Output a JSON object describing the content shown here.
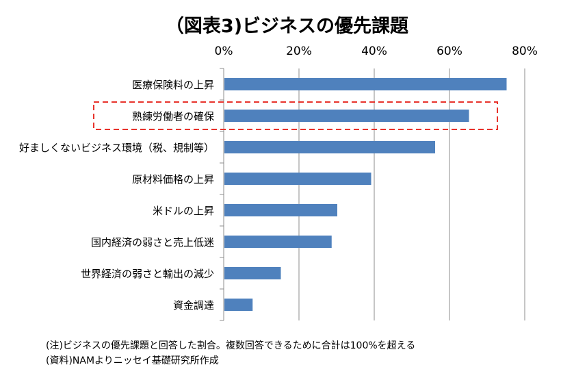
{
  "chart_data": {
    "type": "bar",
    "orientation": "horizontal",
    "title": "（図表3)ビジネスの優先課題",
    "categories": [
      "医療保険料の上昇",
      "熟練労働者の確保",
      "好ましくないビジネス環境（税、規制等）",
      "原材料価格の上昇",
      "米ドルの上昇",
      "国内経済の弱さと売上低迷",
      "世界経済の弱さと輸出の減少",
      "資金調達"
    ],
    "values": [
      75,
      65,
      56,
      39,
      30,
      28.5,
      15,
      7.5
    ],
    "value_unit": "%",
    "xlim": [
      0,
      80
    ],
    "xticks": [
      "0%",
      "20%",
      "40%",
      "60%",
      "80%"
    ],
    "x_axis_position": "top",
    "gridlines": "vertical",
    "highlighted_category": "熟練労働者の確保",
    "bar_color": "#4F81BD",
    "highlight_color": "#E8322B"
  },
  "notes": {
    "note": "(注)ビジネスの優先課題と回答した割合。複数回答できるために合計は100%を超える",
    "source": "(資料)NAMよりニッセイ基礎研究所作成"
  }
}
